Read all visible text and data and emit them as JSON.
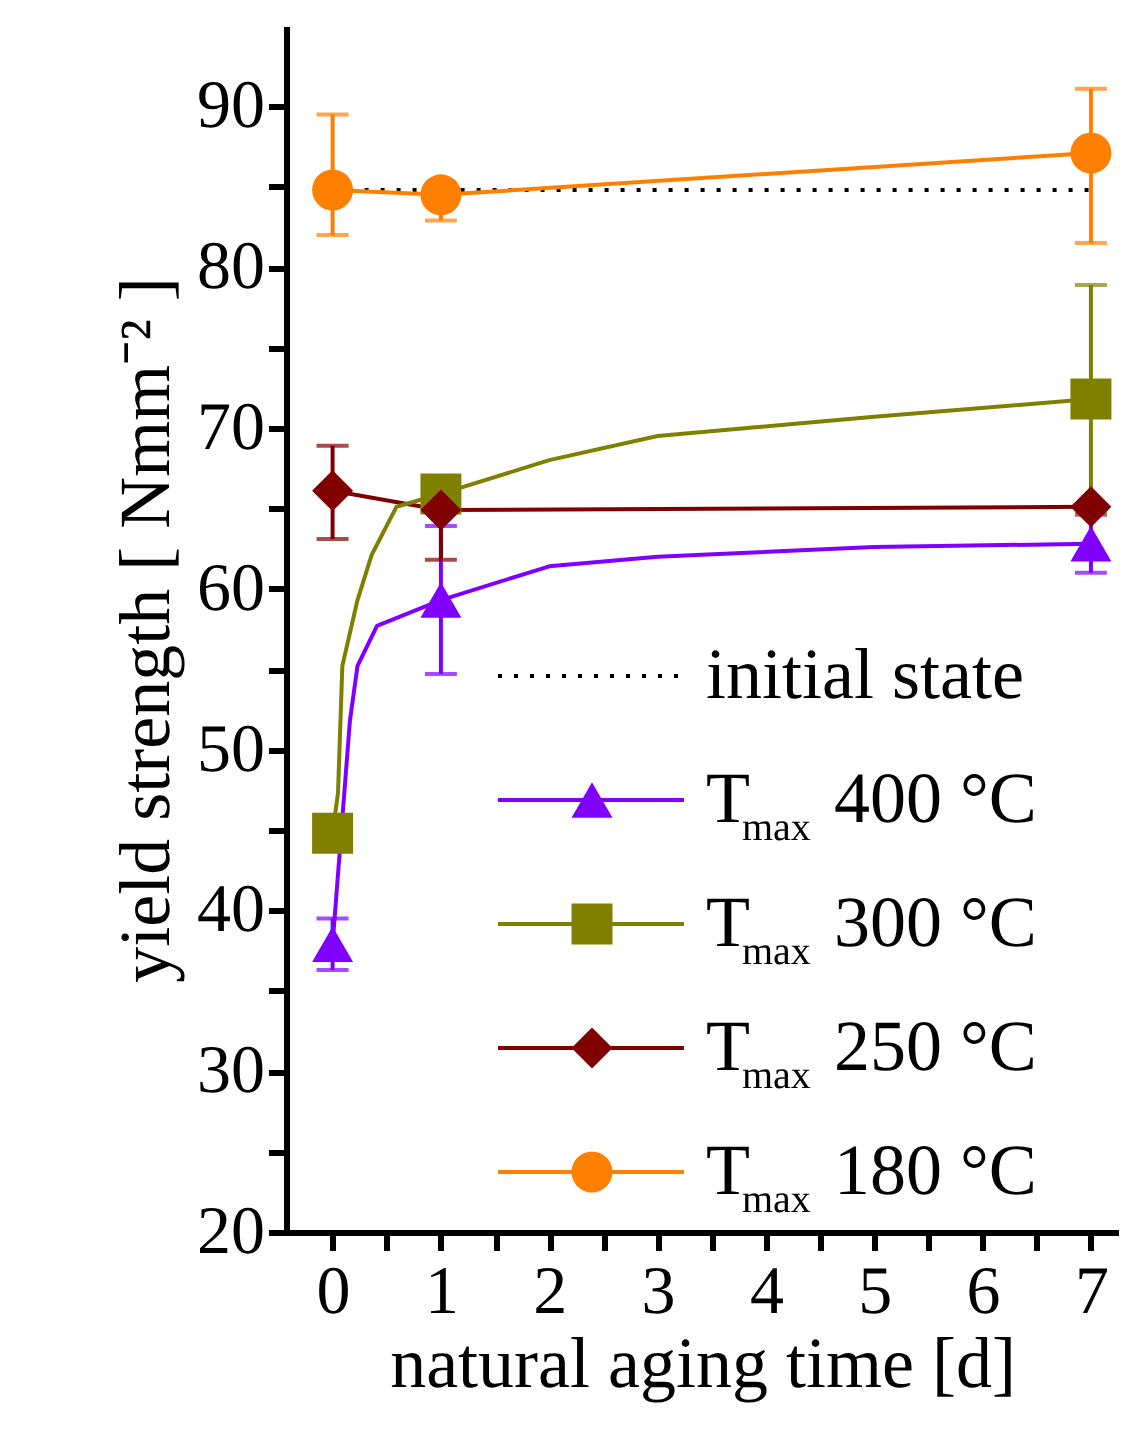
{
  "chart_data": {
    "type": "line",
    "xlabel": "natural aging time  [d]",
    "ylabel": "yield strength  [ Nmm⁻² ]",
    "xlim": [
      -0.43,
      7.25
    ],
    "ylim": [
      20,
      95
    ],
    "xticks": [
      0,
      {
        "value": 0.5,
        "label": null
      },
      1,
      {
        "value": 1.5,
        "label": null
      },
      2,
      {
        "value": 2.5,
        "label": null
      },
      3,
      {
        "value": 3.5,
        "label": null
      },
      4,
      {
        "value": 4.5,
        "label": null
      },
      5,
      {
        "value": 5.5,
        "label": null
      },
      6,
      {
        "value": 6.5,
        "label": null
      },
      7
    ],
    "yticks": [
      20,
      {
        "value": 25,
        "label": null
      },
      30,
      {
        "value": 35,
        "label": null
      },
      40,
      {
        "value": 45,
        "label": null
      },
      50,
      {
        "value": 55,
        "label": null
      },
      60,
      {
        "value": 65,
        "label": null
      },
      70,
      {
        "value": 75,
        "label": null
      },
      80,
      {
        "value": 85,
        "label": null
      },
      90
    ],
    "grid": false,
    "legend": "bottom right",
    "ref_lines": [
      {
        "axis": "y",
        "value": 84.8,
        "label": "initial state",
        "line_style": "dotted",
        "color": "#000000"
      }
    ],
    "series": [
      {
        "name": "T$_{max}$ 400 °C",
        "type": "scatter",
        "color": "#8000ff",
        "marker": "triangle",
        "x": [
          0,
          1,
          7
        ],
        "values": [
          37.9,
          59.3,
          62.8
        ],
        "errors": [
          1.6,
          4.6,
          1.8
        ]
      },
      {
        "name": "T$_{max}$ 300 °C",
        "type": "scatter",
        "color": "#808000",
        "marker": "square",
        "x": [
          0,
          1,
          7
        ],
        "values": [
          44.8,
          65.9,
          71.8
        ],
        "errors": [
          null,
          null,
          7.1
        ]
      },
      {
        "name": "T$_{max}$ 250 °C",
        "color": "#800000",
        "marker": "diamond",
        "x": [
          0,
          1,
          7
        ],
        "values": [
          66.1,
          64.9,
          65.1
        ],
        "errors": [
          [
            63.1,
            68.9
          ],
          [
            61.8,
            64.9
          ],
          null
        ]
      },
      {
        "name": "T$_{max}$ 180 °C",
        "color": "#ff8000",
        "marker": "circle",
        "x": [
          0,
          1,
          7
        ],
        "values": [
          84.8,
          84.5,
          87.1
        ],
        "errors": [
          [
            82.0,
            89.5
          ],
          [
            82.9,
            84.5
          ],
          [
            81.5,
            91.1
          ]
        ]
      },
      {
        "color": "#8000ff",
        "marker": "none",
        "x": [
          0,
          0.16,
          0.23,
          0.41,
          1,
          2,
          3,
          5,
          7
        ],
        "values": [
          37.9,
          51.8,
          55.2,
          57.7,
          59.3,
          61.4,
          62.0,
          62.6,
          62.8
        ]
      },
      {
        "color": "#808000",
        "marker": "none",
        "x": [
          0,
          0.05,
          0.09,
          0.23,
          0.36,
          0.59,
          1,
          2,
          3,
          5,
          7
        ],
        "values": [
          44.8,
          47.3,
          55.2,
          59.3,
          62.1,
          65.1,
          65.9,
          68.0,
          69.5,
          70.7,
          71.8
        ]
      }
    ]
  }
}
